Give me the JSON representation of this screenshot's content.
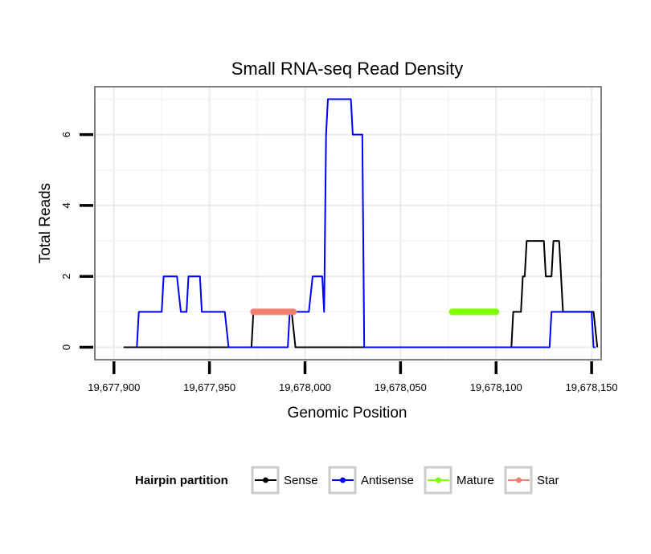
{
  "chart_data": {
    "type": "line",
    "title": "Small RNA-seq Read Density",
    "xlabel": "Genomic Position",
    "ylabel": "Total Reads",
    "xlim": [
      19677890,
      19678155
    ],
    "ylim": [
      -0.35,
      7.35
    ],
    "x_ticks": [
      19677900,
      19677950,
      19678000,
      19678050,
      19678100,
      19678150
    ],
    "x_tick_labels": [
      "19,677,900",
      "19,677,950",
      "19,678,000",
      "19,678,050",
      "19,678,100",
      "19,678,150"
    ],
    "y_ticks": [
      0,
      2,
      4,
      6
    ],
    "y_tick_labels": [
      "0",
      "2",
      "4",
      "6"
    ],
    "grid": true,
    "legend": {
      "title": "Hairpin partition",
      "position": "bottom",
      "entries": [
        "Sense",
        "Antisense",
        "Mature",
        "Star"
      ]
    },
    "series": [
      {
        "name": "Sense",
        "color": "#000000",
        "points": [
          [
            19677905,
            0
          ],
          [
            19677972,
            0
          ],
          [
            19677973,
            1
          ],
          [
            19677993,
            1
          ],
          [
            19677995,
            0
          ],
          [
            19678100,
            0
          ],
          [
            19678108,
            0
          ],
          [
            19678109,
            1
          ],
          [
            19678113,
            1
          ],
          [
            19678114,
            2
          ],
          [
            19678115,
            2
          ],
          [
            19678116,
            3
          ],
          [
            19678125,
            3
          ],
          [
            19678126,
            2
          ],
          [
            19678129,
            2
          ],
          [
            19678130,
            3
          ],
          [
            19678133,
            3
          ],
          [
            19678135,
            1
          ],
          [
            19678151,
            1
          ],
          [
            19678153,
            0
          ]
        ]
      },
      {
        "name": "Antisense",
        "color": "#0000ff",
        "points": [
          [
            19677912,
            0
          ],
          [
            19677913,
            1
          ],
          [
            19677925,
            1
          ],
          [
            19677926,
            2
          ],
          [
            19677933,
            2
          ],
          [
            19677935,
            1
          ],
          [
            19677938,
            1
          ],
          [
            19677939,
            2
          ],
          [
            19677945,
            2
          ],
          [
            19677946,
            1
          ],
          [
            19677958,
            1
          ],
          [
            19677960,
            0
          ],
          [
            19677991,
            0
          ],
          [
            19677992,
            1
          ],
          [
            19678002,
            1
          ],
          [
            19678004,
            2
          ],
          [
            19678009,
            2
          ],
          [
            19678010,
            1
          ],
          [
            19678011,
            6
          ],
          [
            19678012,
            7
          ],
          [
            19678024,
            7
          ],
          [
            19678025,
            6
          ],
          [
            19678030,
            6
          ],
          [
            19678031,
            0
          ],
          [
            19678117,
            0
          ],
          [
            19678128,
            0
          ],
          [
            19678129,
            1
          ],
          [
            19678150,
            1
          ],
          [
            19678151,
            0
          ],
          [
            19678152,
            0
          ]
        ]
      },
      {
        "name": "Mature",
        "color": "#7fff00",
        "points": [
          [
            19678077,
            1
          ],
          [
            19678100,
            1
          ]
        ]
      },
      {
        "name": "Star",
        "color": "#f08070",
        "points": [
          [
            19677973,
            1
          ],
          [
            19677994,
            1
          ]
        ]
      }
    ]
  }
}
